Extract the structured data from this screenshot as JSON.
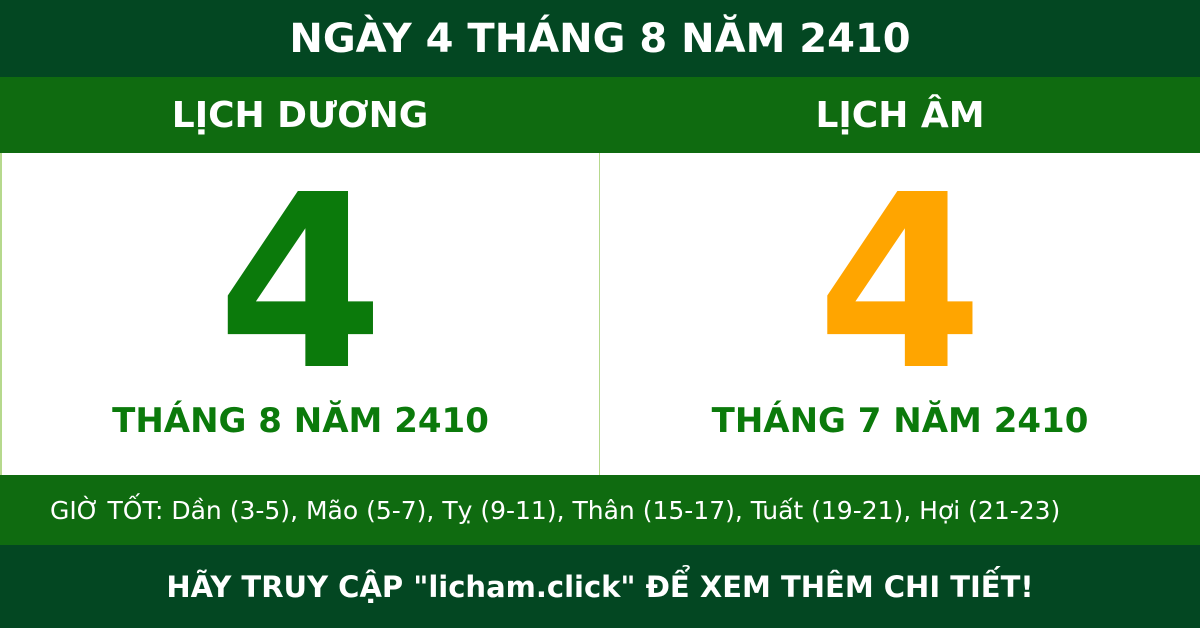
{
  "title": "NGÀY 4 THÁNG 8 NĂM 2410",
  "solar": {
    "label": "LỊCH DƯƠNG",
    "day": "4",
    "month_year": "THÁNG 8 NĂM 2410",
    "color": "#0b7a0b"
  },
  "lunar": {
    "label": "LỊCH ÂM",
    "day": "4",
    "month_year": "THÁNG 7 NĂM 2410",
    "color": "#ffa500"
  },
  "good_hours": "GIỜ TỐT: Dần (3-5), Mão (5-7), Tỵ (9-11), Thân (15-17), Tuất (19-21), Hợi (21-23)",
  "footer": "HÃY TRUY CẬP \"licham.click\" ĐỂ XEM THÊM CHI TIẾT!"
}
